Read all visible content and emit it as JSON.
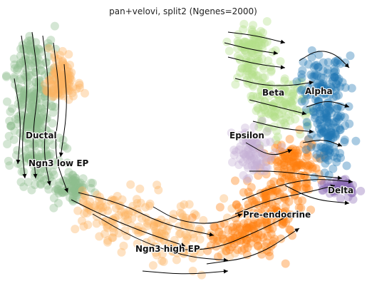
{
  "chart_data": {
    "type": "scatter",
    "title": "pan+velovi, split2 (Ngenes=2000)",
    "xlabel": "",
    "ylabel": "",
    "grid": false,
    "legend": "on data",
    "stream_color": "#000000",
    "clusters": [
      {
        "name": "Ductal",
        "color": "#8fbc8f"
      },
      {
        "name": "Ngn3 low EP",
        "color": "#8fbc8f"
      },
      {
        "name": "Ngn3 high EP",
        "color": "#fdb462"
      },
      {
        "name": "Pre-endocrine",
        "color": "#ff7f0e"
      },
      {
        "name": "Beta",
        "color": "#b2df8a"
      },
      {
        "name": "Alpha",
        "color": "#1f77b4"
      },
      {
        "name": "Epsilon",
        "color": "#c5b0d5"
      },
      {
        "name": "Delta",
        "color": "#8b6bb5"
      }
    ]
  }
}
